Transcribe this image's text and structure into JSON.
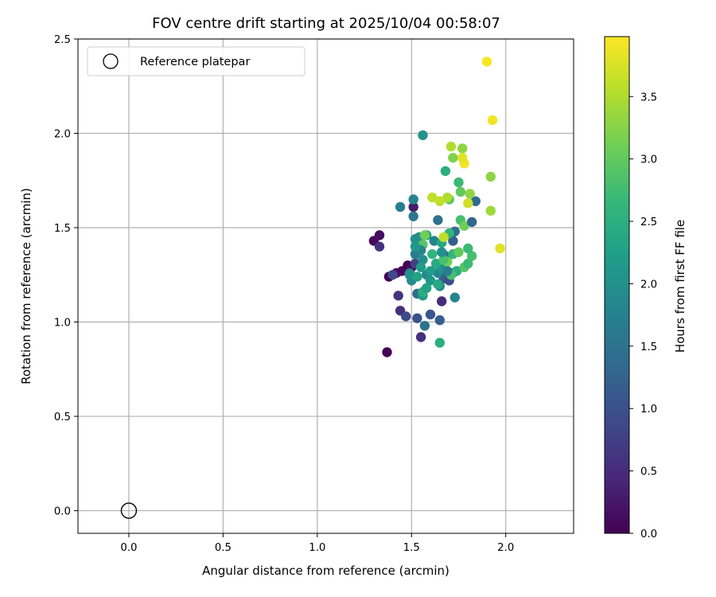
{
  "chart_data": {
    "type": "scatter",
    "title": "FOV centre drift starting at 2025/10/04 00:58:07",
    "xlabel": "Angular distance from reference (arcmin)",
    "ylabel": "Rotation from reference (arcmin)",
    "xlim": [
      -0.27,
      2.36
    ],
    "ylim": [
      -0.12,
      2.5
    ],
    "xticks": [
      0.0,
      0.5,
      1.0,
      1.5,
      2.0
    ],
    "xtick_labels": [
      "0.0",
      "0.5",
      "1.0",
      "1.5",
      "2.0"
    ],
    "yticks": [
      0.0,
      0.5,
      1.0,
      1.5,
      2.0,
      2.5
    ],
    "ytick_labels": [
      "0.0",
      "0.5",
      "1.0",
      "1.5",
      "2.0",
      "2.5"
    ],
    "grid": true,
    "legend": {
      "position": "upper-left",
      "entries": [
        "Reference platepar"
      ]
    },
    "reference_point": {
      "x": 0.0,
      "y": 0.0,
      "label": "Reference platepar",
      "marker": "open-circle"
    },
    "colorbar": {
      "label": "Hours from first FF file",
      "colormap": "viridis",
      "range": [
        0.0,
        3.98
      ],
      "ticks": [
        0.0,
        0.5,
        1.0,
        1.5,
        2.0,
        2.5,
        3.0,
        3.5
      ],
      "tick_labels": [
        "0.0",
        "0.5",
        "1.0",
        "1.5",
        "2.0",
        "2.5",
        "3.0",
        "3.5"
      ]
    },
    "series": [
      {
        "name": "FOV centre drift",
        "points": [
          [
            1.37,
            0.84,
            0.02
          ],
          [
            1.3,
            1.43,
            0.1
          ],
          [
            1.33,
            1.46,
            0.15
          ],
          [
            1.38,
            1.24,
            0.05
          ],
          [
            1.42,
            1.26,
            0.2
          ],
          [
            1.45,
            1.27,
            0.08
          ],
          [
            1.48,
            1.3,
            0.0
          ],
          [
            1.5,
            1.29,
            0.1
          ],
          [
            1.51,
            1.61,
            0.3
          ],
          [
            1.33,
            1.4,
            0.6
          ],
          [
            1.43,
            1.14,
            0.6
          ],
          [
            1.44,
            1.06,
            0.55
          ],
          [
            1.55,
            0.92,
            0.55
          ],
          [
            1.47,
            1.03,
            0.9
          ],
          [
            1.52,
            1.31,
            0.8
          ],
          [
            1.4,
            1.25,
            0.9
          ],
          [
            1.66,
            1.11,
            0.5
          ],
          [
            1.53,
            1.02,
            1.0
          ],
          [
            1.6,
            1.04,
            1.1
          ],
          [
            1.65,
            1.01,
            1.2
          ],
          [
            1.57,
            0.98,
            1.5
          ],
          [
            1.65,
            0.89,
            2.5
          ],
          [
            1.56,
            1.99,
            2.05
          ],
          [
            1.51,
            1.65,
            1.8
          ],
          [
            1.44,
            1.61,
            1.7
          ],
          [
            1.51,
            1.56,
            1.6
          ],
          [
            1.64,
            1.54,
            1.5
          ],
          [
            1.54,
            1.45,
            1.9
          ],
          [
            1.52,
            1.44,
            2.0
          ],
          [
            1.58,
            1.46,
            2.2
          ],
          [
            1.62,
            1.43,
            1.8
          ],
          [
            1.66,
            1.42,
            2.4
          ],
          [
            1.72,
            1.43,
            1.2
          ],
          [
            1.73,
            1.48,
            1.5
          ],
          [
            1.7,
            1.47,
            2.6
          ],
          [
            1.49,
            1.26,
            1.6
          ],
          [
            1.52,
            1.36,
            1.7
          ],
          [
            1.56,
            1.33,
            2.0
          ],
          [
            1.58,
            1.25,
            1.9
          ],
          [
            1.53,
            1.15,
            1.4
          ],
          [
            1.56,
            1.14,
            2.2
          ],
          [
            1.56,
            1.16,
            2.5
          ],
          [
            1.6,
            1.22,
            2.1
          ],
          [
            1.58,
            1.18,
            2.3
          ],
          [
            1.65,
            1.19,
            1.9
          ],
          [
            1.67,
            1.23,
            1.2
          ],
          [
            1.68,
            1.35,
            1.3
          ],
          [
            1.64,
            1.26,
            1.8
          ],
          [
            1.66,
            1.28,
            2.0
          ],
          [
            1.7,
            1.22,
            1.0
          ],
          [
            1.72,
            1.26,
            1.4
          ],
          [
            1.73,
            1.13,
            1.8
          ],
          [
            1.74,
            1.27,
            2.5
          ],
          [
            1.71,
            1.25,
            2.8
          ],
          [
            1.78,
            1.29,
            2.9
          ],
          [
            1.8,
            1.31,
            2.7
          ],
          [
            1.82,
            1.35,
            2.8
          ],
          [
            1.8,
            1.39,
            2.7
          ],
          [
            1.69,
            1.32,
            3.1
          ],
          [
            1.72,
            1.36,
            2.6
          ],
          [
            1.75,
            1.37,
            3.0
          ],
          [
            1.76,
            1.54,
            2.8
          ],
          [
            1.78,
            1.51,
            3.1
          ],
          [
            1.82,
            1.53,
            1.3
          ],
          [
            1.84,
            1.64,
            1.4
          ],
          [
            1.8,
            1.63,
            3.7
          ],
          [
            1.81,
            1.68,
            3.3
          ],
          [
            1.76,
            1.69,
            3.0
          ],
          [
            1.75,
            1.74,
            2.7
          ],
          [
            1.7,
            1.65,
            2.9
          ],
          [
            1.69,
            1.66,
            3.5
          ],
          [
            1.65,
            1.64,
            3.6
          ],
          [
            1.61,
            1.66,
            3.6
          ],
          [
            1.68,
            1.8,
            2.5
          ],
          [
            1.71,
            1.93,
            3.5
          ],
          [
            1.72,
            1.87,
            3.2
          ],
          [
            1.77,
            1.92,
            3.3
          ],
          [
            1.78,
            1.84,
            3.9
          ],
          [
            1.77,
            1.87,
            3.8
          ],
          [
            1.92,
            1.77,
            3.3
          ],
          [
            1.92,
            1.59,
            3.4
          ],
          [
            1.97,
            1.39,
            3.8
          ],
          [
            1.9,
            2.38,
            3.95
          ],
          [
            1.93,
            2.07,
            3.9
          ],
          [
            1.67,
            1.45,
            3.6
          ],
          [
            1.57,
            1.46,
            3.1
          ],
          [
            1.56,
            1.41,
            2.9
          ],
          [
            1.61,
            1.36,
            2.6
          ],
          [
            1.55,
            1.38,
            1.8
          ],
          [
            1.5,
            1.22,
            1.9
          ],
          [
            1.49,
            1.25,
            2.0
          ],
          [
            1.53,
            1.24,
            2.3
          ],
          [
            1.63,
            1.31,
            2.4
          ],
          [
            1.6,
            1.27,
            2.2
          ],
          [
            1.64,
            1.2,
            2.4
          ],
          [
            1.69,
            1.27,
            1.7
          ],
          [
            1.52,
            1.4,
            2.1
          ],
          [
            1.55,
            1.29,
            2.2
          ],
          [
            1.67,
            1.33,
            2.8
          ],
          [
            1.66,
            1.37,
            2.0
          ]
        ]
      }
    ]
  }
}
